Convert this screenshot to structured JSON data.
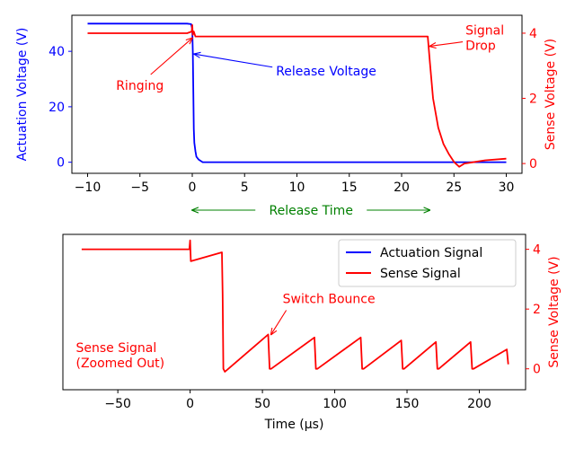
{
  "chart_data": [
    {
      "type": "line",
      "title": "",
      "xlabel": "",
      "xlim": [
        -11.5,
        31.5
      ],
      "xticks": [
        -10,
        -5,
        0,
        5,
        10,
        15,
        20,
        25,
        30
      ],
      "y_left": {
        "label": "Actuation Voltage (V)",
        "lim": [
          -4,
          53
        ],
        "ticks": [
          0,
          20,
          40
        ],
        "color": "#0000ff"
      },
      "y_right": {
        "label": "Sense Voltage (V)",
        "lim": [
          -0.3,
          4.55
        ],
        "ticks": [
          0,
          2,
          4
        ],
        "color": "#ff0000"
      },
      "series": [
        {
          "name": "Actuation Signal",
          "axis": "left",
          "color": "#0000ff",
          "x": [
            -10,
            -0.5,
            -0.1,
            0,
            0.05,
            0.1,
            0.15,
            0.2,
            0.3,
            0.4,
            0.6,
            1.0,
            2,
            5,
            10,
            15,
            20,
            25,
            30
          ],
          "y": [
            50,
            50,
            49.8,
            48,
            40,
            25,
            12,
            7,
            4,
            2,
            1,
            0,
            0,
            0,
            0,
            0,
            0,
            0,
            0
          ]
        },
        {
          "name": "Sense Signal",
          "axis": "right",
          "color": "#ff0000",
          "x": [
            -10,
            -0.5,
            -0.05,
            0,
            0.05,
            0.15,
            0.3,
            1,
            5,
            10,
            15,
            20,
            22.5,
            22.7,
            23,
            23.5,
            24,
            24.5,
            25,
            25.5,
            26,
            27,
            28,
            30
          ],
          "y": [
            4.0,
            4.0,
            4.05,
            4.25,
            3.95,
            4.05,
            3.9,
            3.9,
            3.9,
            3.9,
            3.9,
            3.9,
            3.9,
            3.1,
            2.0,
            1.1,
            0.6,
            0.3,
            0.05,
            -0.1,
            0.0,
            0.05,
            0.1,
            0.15
          ]
        }
      ],
      "annotations": [
        {
          "text": "Ringing",
          "color": "#ff0000",
          "x": -5,
          "y_right": 2.4,
          "arrow_to": [
            0,
            3.85
          ]
        },
        {
          "text": "Release Voltage",
          "color": "#0000ff",
          "x": 8,
          "y_left": 33,
          "arrow_to": [
            0.2,
            39
          ]
        },
        {
          "text": "Signal Drop",
          "color": "#ff0000",
          "x": 26.1,
          "y_right": 3.9,
          "arrow_to": [
            22.7,
            3.6
          ]
        }
      ]
    },
    {
      "type": "line",
      "title": "",
      "xlabel": "Time (μs)",
      "xlim": [
        -88,
        232
      ],
      "xticks": [
        -50,
        0,
        50,
        100,
        150,
        200
      ],
      "y_right": {
        "label": "Sense Voltage (V)",
        "lim": [
          -0.7,
          4.5
        ],
        "ticks": [
          0,
          2,
          4
        ],
        "color": "#ff0000"
      },
      "legend": {
        "position": "top-right",
        "entries": [
          "Actuation Signal",
          "Sense Signal"
        ],
        "colors": [
          "#0000ff",
          "#ff0000"
        ]
      },
      "series": [
        {
          "name": "Sense Signal",
          "axis": "right",
          "color": "#ff0000",
          "x": [
            -75,
            -0.5,
            0,
            0.5,
            22,
            22.5,
            23,
            24,
            54,
            55,
            56,
            86,
            87,
            88,
            118,
            119,
            120,
            146,
            147,
            148,
            170,
            171,
            172,
            194,
            195,
            196,
            219,
            220
          ],
          "y": [
            4.0,
            4.0,
            4.3,
            3.6,
            3.9,
            2.5,
            0.0,
            -0.1,
            1.15,
            0.0,
            0.0,
            1.05,
            0.0,
            0.0,
            1.05,
            0.0,
            0.0,
            0.95,
            0.0,
            0.0,
            0.9,
            0.0,
            0.0,
            0.9,
            0.0,
            0.0,
            0.65,
            0.15
          ]
        }
      ],
      "annotations": [
        {
          "text": "Switch Bounce",
          "color": "#ff0000",
          "x": 64,
          "y_right": 2.2,
          "arrow_to": [
            56,
            1.15
          ]
        },
        {
          "text": "Sense Signal\n(Zoomed Out)",
          "color": "#ff0000",
          "x": -79,
          "y_right": 0.2
        }
      ]
    }
  ],
  "between_label": {
    "text": "Release Time",
    "color": "#008000",
    "from": 0,
    "to": 22.7
  }
}
